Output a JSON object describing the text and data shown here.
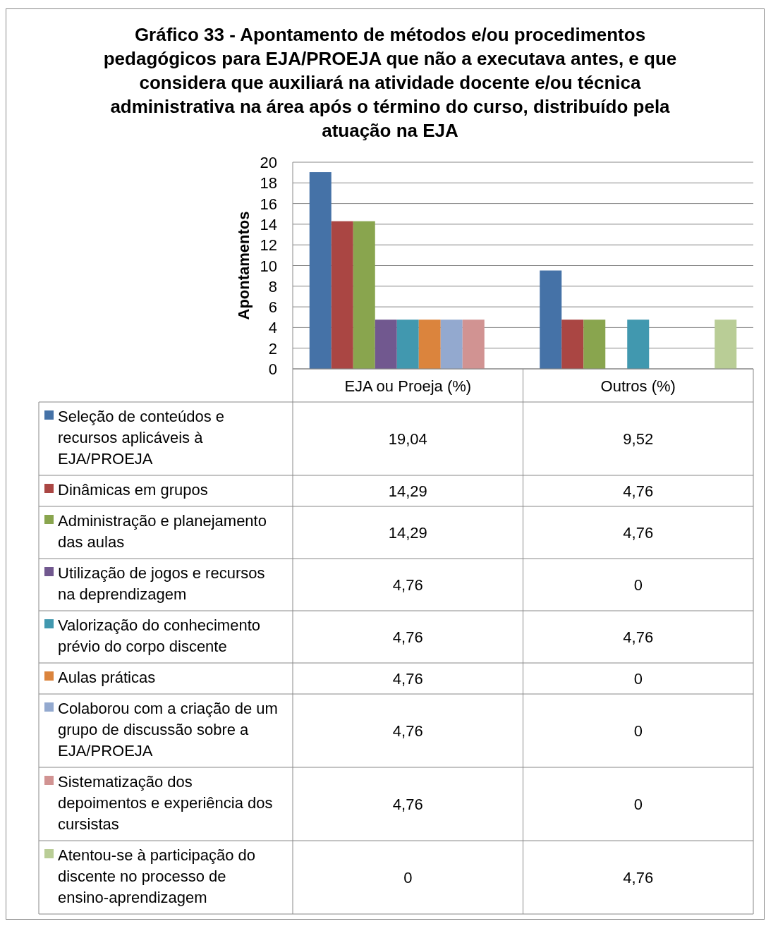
{
  "chart_data": {
    "type": "bar",
    "title": "Gráfico 33 - Apontamento de métodos e/ou procedimentos pedagógicos  para EJA/PROEJA que não a executava antes, e que considera que auxiliará na atividade docente e/ou técnica administrativa na área após o término do curso, distribuído pela atuação na EJA",
    "ylabel": "Apontamentos",
    "categories": [
      "EJA ou Proeja (%)",
      "Outros (%)"
    ],
    "ylim": [
      0,
      20
    ],
    "yticks": [
      0,
      2,
      4,
      6,
      8,
      10,
      12,
      14,
      16,
      18,
      20
    ],
    "grid": "y",
    "legend": "bottom",
    "series": [
      {
        "name": "Seleção de conteúdos e recursos aplicáveis à EJA/PROEJA",
        "color": "#4572a7",
        "values": [
          19.04,
          9.52
        ],
        "value_labels": [
          "19,04",
          "9,52"
        ]
      },
      {
        "name": "Dinâmicas em grupos",
        "color": "#aa4643",
        "values": [
          14.29,
          4.76
        ],
        "value_labels": [
          "14,29",
          "4,76"
        ]
      },
      {
        "name": "Administração e planejamento das aulas",
        "color": "#89a54e",
        "values": [
          14.29,
          4.76
        ],
        "value_labels": [
          "14,29",
          "4,76"
        ]
      },
      {
        "name": "Utilização de jogos e recursos na deprendizagem",
        "color": "#71588f",
        "values": [
          4.76,
          0
        ],
        "value_labels": [
          "4,76",
          "0"
        ]
      },
      {
        "name": "Valorização do conhecimento prévio do corpo discente",
        "color": "#4198af",
        "values": [
          4.76,
          4.76
        ],
        "value_labels": [
          "4,76",
          "4,76"
        ]
      },
      {
        "name": "Aulas práticas",
        "color": "#db843d",
        "values": [
          4.76,
          0
        ],
        "value_labels": [
          "4,76",
          "0"
        ]
      },
      {
        "name": "Colaborou com a criação de um grupo de discussão sobre a EJA/PROEJA",
        "color": "#93a9cf",
        "values": [
          4.76,
          0
        ],
        "value_labels": [
          "4,76",
          "0"
        ]
      },
      {
        "name": "Sistematização dos depoimentos e experiência dos cursistas",
        "color": "#d19392",
        "values": [
          4.76,
          0
        ],
        "value_labels": [
          "4,76",
          "0"
        ]
      },
      {
        "name": "Atentou-se à participação do discente no processo de ensino-aprendizagem",
        "color": "#b9cd96",
        "values": [
          0,
          4.76
        ],
        "value_labels": [
          "0",
          "4,76"
        ]
      }
    ]
  }
}
